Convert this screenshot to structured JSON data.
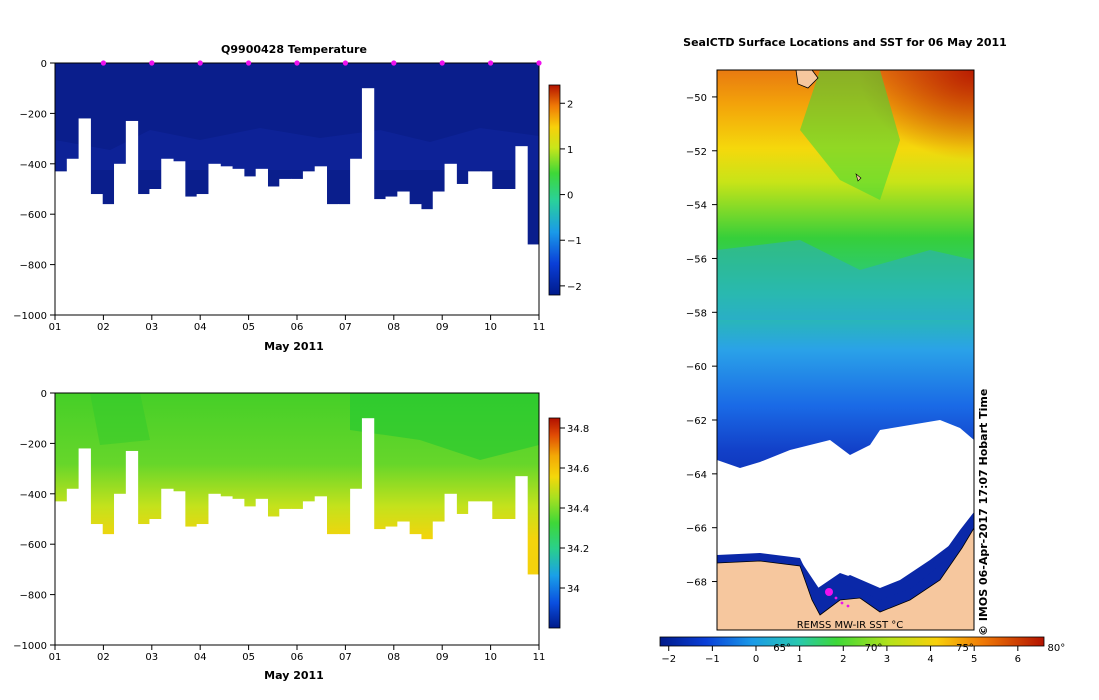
{
  "colors": {
    "deep_blue": "#0a1e8c",
    "white": "#ffffff",
    "land": "#f6c79e",
    "marker": "#ee11ee"
  },
  "chart_data": [
    {
      "type": "heatmap",
      "title": "Q9900428  Temperature",
      "xlabel": "May 2011",
      "ylabel": "",
      "xticks": [
        "01",
        "02",
        "03",
        "04",
        "05",
        "06",
        "07",
        "08",
        "09",
        "10",
        "11"
      ],
      "yticks": [
        "0",
        "−200",
        "−400",
        "−600",
        "−800",
        "−1000"
      ],
      "ylim": [
        -1000,
        0
      ],
      "colorbar": {
        "ticks": [
          "2",
          "1",
          "0",
          "−1",
          "−2"
        ],
        "range": [
          -2.2,
          2.4
        ]
      },
      "profile_max_depth_m": [
        430,
        380,
        220,
        520,
        560,
        400,
        230,
        520,
        500,
        380,
        390,
        530,
        520,
        400,
        410,
        420,
        450,
        420,
        490,
        460,
        460,
        430,
        410,
        560,
        560,
        380,
        100,
        540,
        530,
        510,
        560,
        580,
        510,
        400,
        480,
        430,
        430,
        500,
        500,
        330,
        720
      ],
      "surface_marker_days": [
        2,
        3,
        4,
        5,
        6,
        7,
        8,
        9,
        10,
        11
      ]
    },
    {
      "type": "heatmap",
      "title": "",
      "xlabel": "May 2011",
      "ylabel": "",
      "xticks": [
        "01",
        "02",
        "03",
        "04",
        "05",
        "06",
        "07",
        "08",
        "09",
        "10",
        "11"
      ],
      "yticks": [
        "0",
        "−200",
        "−400",
        "−600",
        "−800",
        "−1000"
      ],
      "ylim": [
        -1000,
        0
      ],
      "colorbar": {
        "ticks": [
          "34.8",
          "34.6",
          "34.4",
          "34.2",
          "34"
        ],
        "range": [
          33.8,
          34.85
        ]
      }
    },
    {
      "type": "heatmap",
      "title": "SealCTD Surface Locations and SST for 06 May 2011",
      "ylabel": "",
      "yticks": [
        "−50",
        "−52",
        "−54",
        "−56",
        "−58",
        "−60",
        "−62",
        "−64",
        "−66",
        "−68"
      ],
      "ylim": [
        -69.8,
        -49.0
      ],
      "colorbar": {
        "ticks": [
          "−2",
          "−1",
          "0",
          "1",
          "2",
          "3",
          "4",
          "5",
          "6"
        ],
        "range": [
          -2.2,
          6.6
        ],
        "f_ticks": [
          "65°",
          "70°",
          "75°",
          "80°"
        ]
      },
      "source_label": "REMSS MW-IR SST °C",
      "credit": "©  IMOS 06-Apr-2017 17:07 Hobart Time"
    }
  ]
}
